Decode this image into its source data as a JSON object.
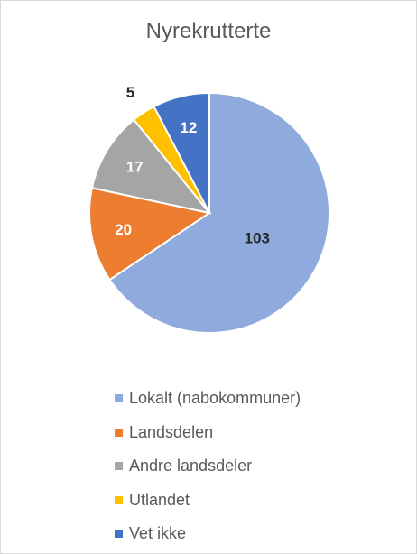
{
  "chart_data": {
    "type": "pie",
    "title": "Nyrekrutterte",
    "categories": [
      "Lokalt (nabokommuner)",
      "Landsdelen",
      "Andre landsdeler",
      "Utlandet",
      "Vet ikke"
    ],
    "values": [
      103,
      20,
      17,
      5,
      12
    ],
    "colors": [
      "#8faadc",
      "#ed7d31",
      "#a5a5a5",
      "#ffc000",
      "#4472c4"
    ],
    "label_colors": [
      "#262626",
      "#ffffff",
      "#ffffff",
      "#262626",
      "#ffffff"
    ],
    "start_angle_deg": 0,
    "direction": "clockwise",
    "legend_position": "bottom"
  }
}
